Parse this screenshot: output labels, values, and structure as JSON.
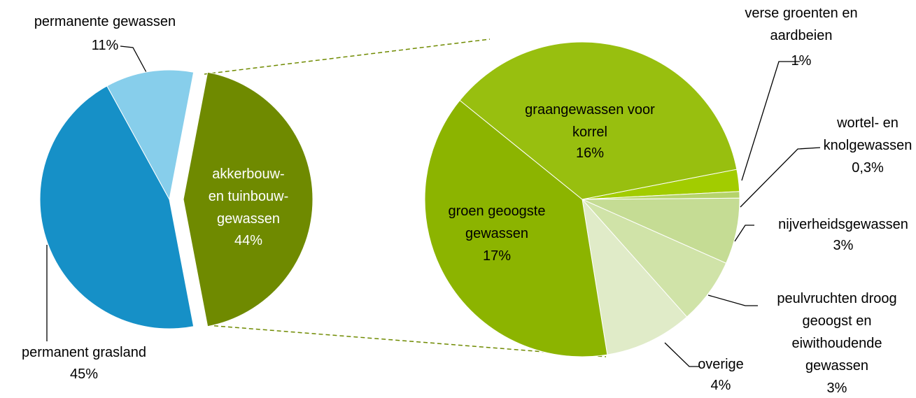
{
  "chart_data": [
    {
      "type": "pie",
      "categories": [
        "akkerbouw-\nen tuinbouw-\ngewassen",
        "permanent grasland",
        "permanente gewassen"
      ],
      "values": [
        44,
        45,
        11
      ],
      "value_labels": [
        "44%",
        "45%",
        "11%"
      ],
      "colors": [
        "#6f8a00",
        "#1690c7",
        "#87ceeb"
      ],
      "explode": [
        true,
        false,
        false
      ]
    },
    {
      "type": "pie",
      "categories": [
        "verse groenten en\naardbeien",
        "wortel- en\nknolgewassen",
        "nijverheidsgewassen",
        "peulvruchten droog\ngeoogst en\neiwithoudende\ngewassen",
        "overige",
        "groen geoogste\ngewassen",
        "graangewassen voor\nkorrel"
      ],
      "values": [
        1,
        0.3,
        3,
        3,
        4,
        17,
        16
      ],
      "value_labels": [
        "1%",
        "0,3%",
        "3%",
        "3%",
        "4%",
        "17%",
        "16%"
      ],
      "colors": [
        "#a2cc00",
        "#b5d36a",
        "#c5dc94",
        "#d0e3a8",
        "#e0ebc8",
        "#8cb400",
        "#98bf0f"
      ],
      "explode": [
        false,
        false,
        false,
        false,
        false,
        false,
        false
      ]
    }
  ]
}
